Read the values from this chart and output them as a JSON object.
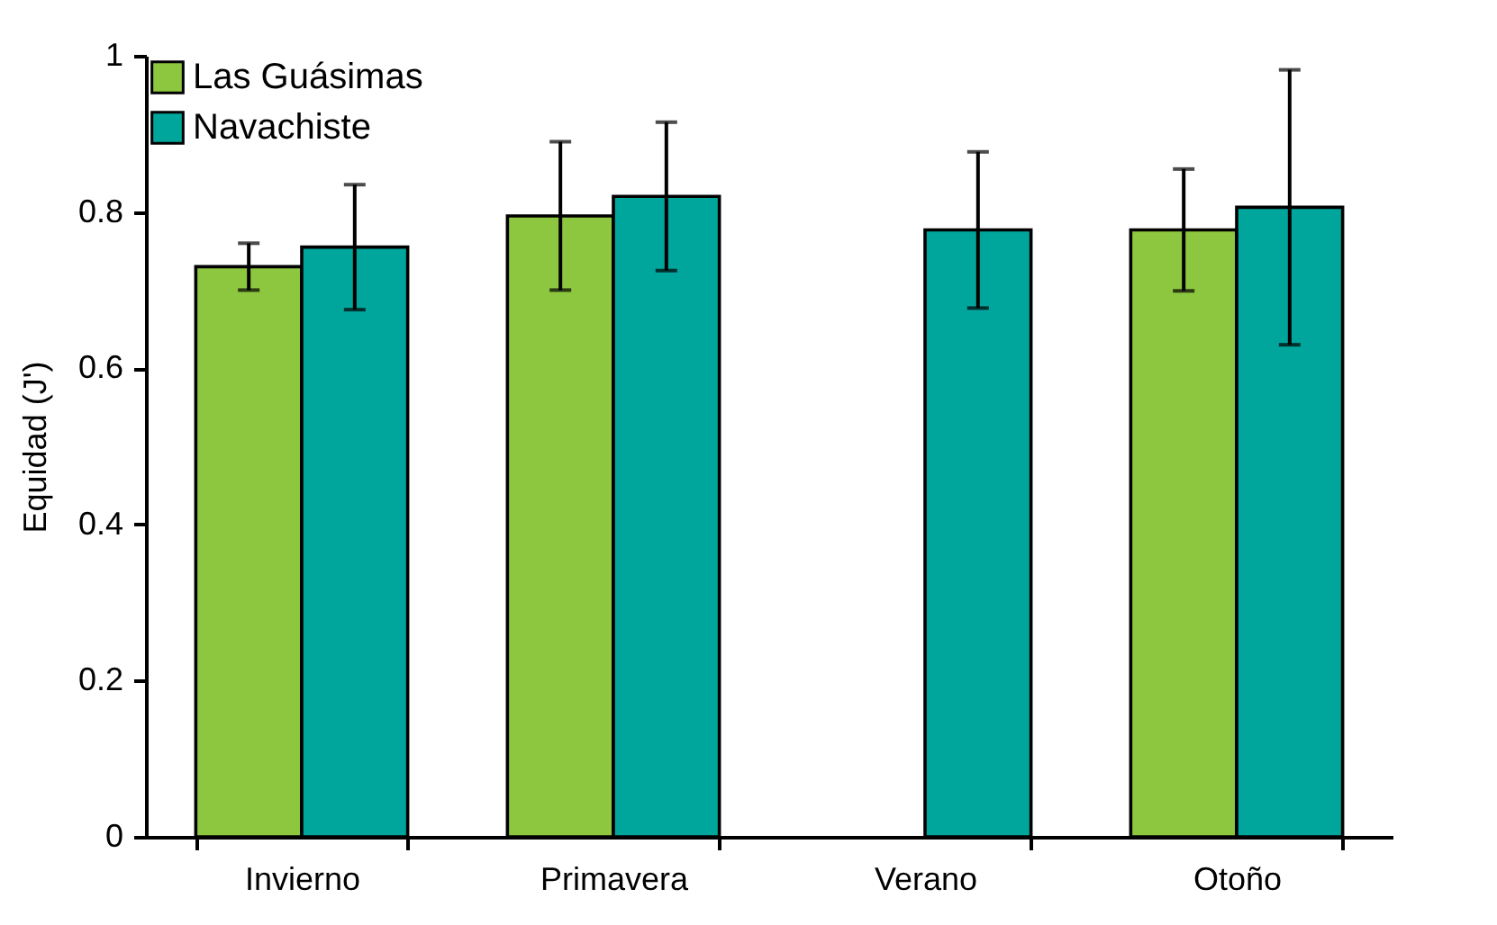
{
  "chart_data": {
    "type": "bar",
    "ylabel": "Equidad (J')",
    "categories": [
      "Invierno",
      "Primavera",
      "Verano",
      "Otoño"
    ],
    "series": [
      {
        "name": "Las Guásimas",
        "color": "#8dc63f",
        "values": [
          0.73,
          0.795,
          null,
          0.777
        ],
        "errors": [
          0.03,
          0.095,
          null,
          0.078
        ]
      },
      {
        "name": "Navachiste",
        "color": "#00a69c",
        "values": [
          0.755,
          0.82,
          0.777,
          0.806
        ],
        "errors": [
          0.08,
          0.095,
          0.1,
          0.176
        ]
      }
    ],
    "ylim": [
      0,
      1
    ],
    "yticks": [
      0,
      0.2,
      0.4,
      0.6,
      0.8,
      1
    ],
    "grid": false,
    "legend": "top left"
  }
}
